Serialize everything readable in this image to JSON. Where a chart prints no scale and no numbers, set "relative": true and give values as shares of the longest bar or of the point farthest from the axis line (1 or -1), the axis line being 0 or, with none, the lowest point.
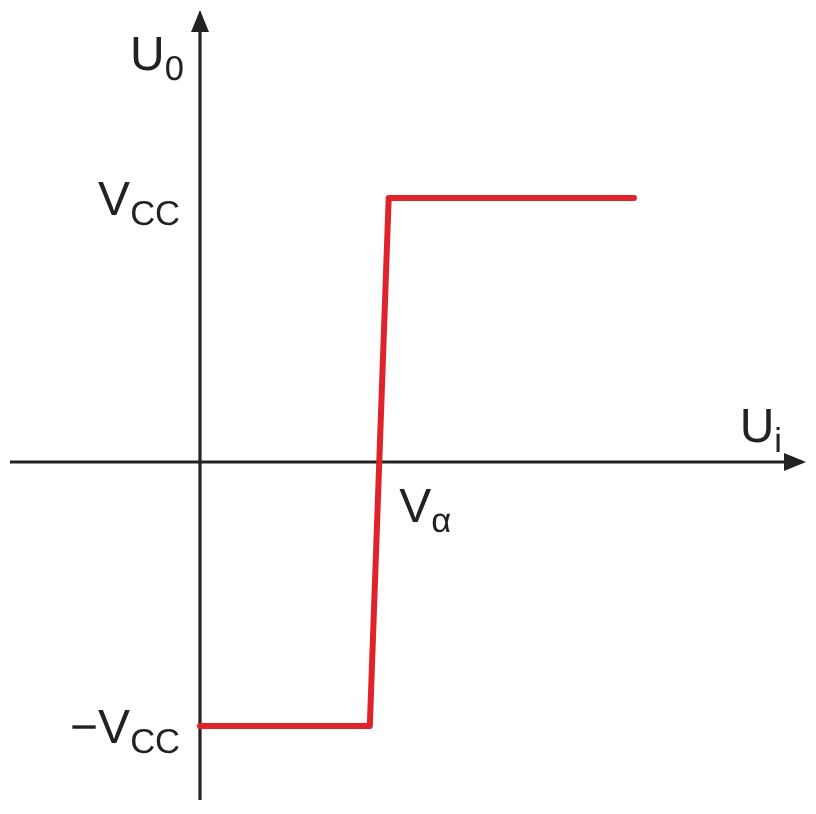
{
  "chart_data": {
    "type": "line",
    "relative": true,
    "xlabel": "U$_{i}$",
    "ylabel": "U$_{0}$",
    "categories": [
      null,
      null,
      null,
      null,
      null,
      null,
      null,
      null,
      null,
      null,
      null,
      null,
      null,
      null,
      null,
      null,
      null,
      null,
      null,
      null,
      null,
      null,
      null,
      null
    ],
    "series": [
      {
        "color": "#e0232b",
        "values": [
          -1,
          -1,
          -1,
          -1,
          -1,
          -1,
          -1,
          -1,
          -1,
          -1,
          1,
          1,
          1,
          1,
          1,
          1,
          1,
          1,
          1,
          1,
          1,
          1,
          1,
          1
        ]
      }
    ],
    "annotations": [
      "V$_{CC}$",
      "−V$_{CC}$",
      "V$_{α}$"
    ],
    "line_style": "solid"
  }
}
